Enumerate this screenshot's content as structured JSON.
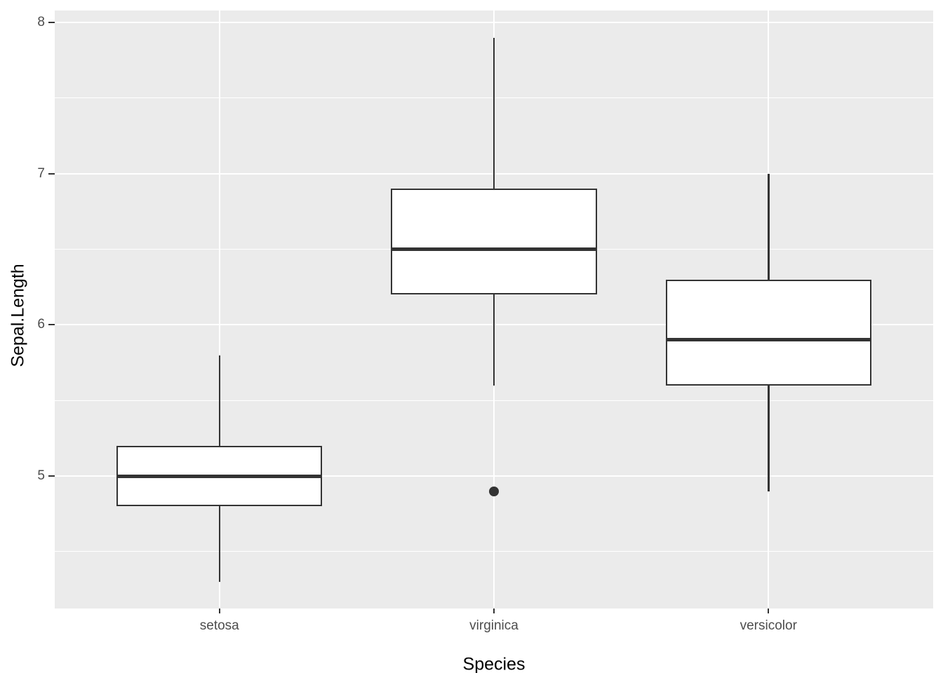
{
  "chart_data": {
    "type": "boxplot",
    "title": "",
    "xlabel": "Species",
    "ylabel": "Sepal.Length",
    "categories": [
      "setosa",
      "virginica",
      "versicolor"
    ],
    "y_ticks": [
      5,
      6,
      7,
      8
    ],
    "y_minor_ticks": [
      4.5,
      5.5,
      6.5,
      7.5
    ],
    "ylim": [
      4.124,
      8.079
    ],
    "box_width_ratio": 0.75,
    "series": [
      {
        "category": "setosa",
        "whisker_low": 4.3,
        "q1": 4.8,
        "median": 5.0,
        "q3": 5.2,
        "whisker_high": 5.8,
        "outliers": []
      },
      {
        "category": "virginica",
        "whisker_low": 5.6,
        "q1": 6.2,
        "median": 6.5,
        "q3": 6.9,
        "whisker_high": 7.9,
        "outliers": [
          4.9
        ]
      },
      {
        "category": "versicolor",
        "whisker_low": 4.9,
        "q1": 5.6,
        "median": 5.9,
        "q3": 6.3,
        "whisker_high": 7.0,
        "outliers": []
      }
    ],
    "grid": true,
    "legend_position": "none",
    "colors": {
      "panel_background": "#EBEBEB",
      "grid_major": "#FFFFFF",
      "grid_minor": "#FFFFFF",
      "box_stroke": "#333333",
      "box_fill": "#FFFFFF",
      "median": "#333333",
      "outlier": "#333333",
      "tick_label": "#4D4D4D",
      "axis_title": "#000000"
    }
  }
}
